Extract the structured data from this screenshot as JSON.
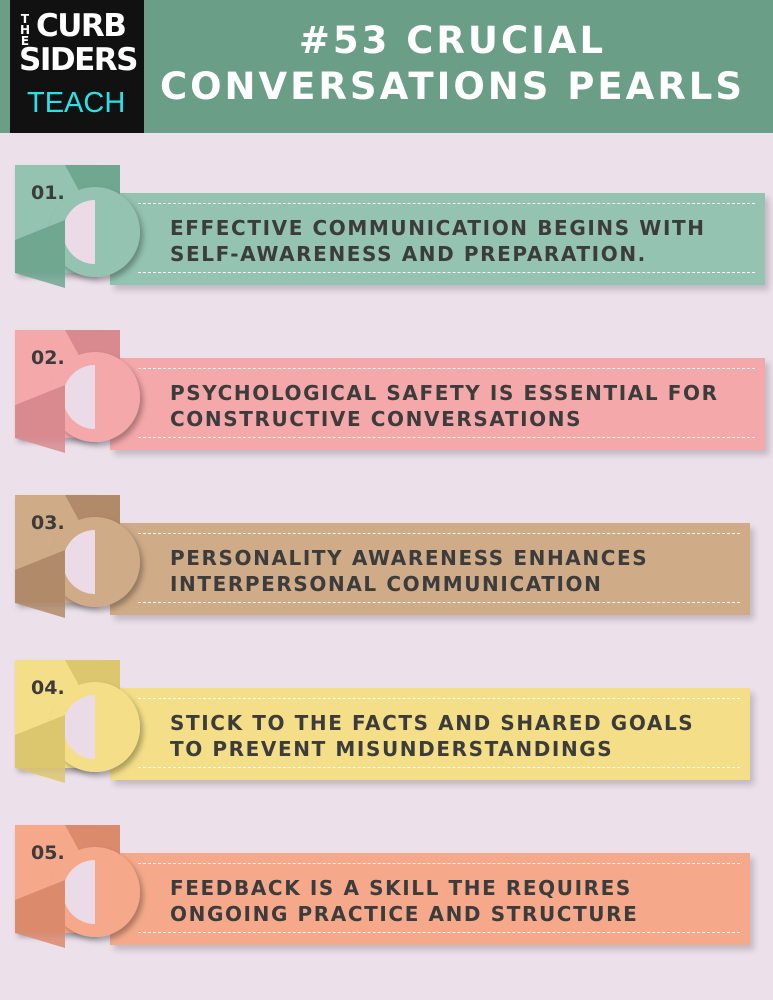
{
  "header": {
    "logo": {
      "the": "THE",
      "line1": "CURB",
      "line2": "SIDERS",
      "line3": "TEACH"
    },
    "title_line1": "#53 CRUCIAL",
    "title_line2": "CONVERSATIONS PEARLS"
  },
  "items": [
    {
      "number": "01.",
      "line1": "EFFECTIVE COMMUNICATION BEGINS WITH",
      "line2": "SELF-AWARENESS AND PREPARATION.",
      "color": "#94c3b1",
      "dark": "#6fa791"
    },
    {
      "number": "02.",
      "line1": "PSYCHOLOGICAL SAFETY IS ESSENTIAL FOR",
      "line2": "CONSTRUCTIVE CONVERSATIONS",
      "color": "#f5a8aa",
      "dark": "#d98a8e"
    },
    {
      "number": "03.",
      "line1": "PERSONALITY AWARENESS ENHANCES",
      "line2": "INTERPERSONAL COMMUNICATION",
      "color": "#cfab88",
      "dark": "#b18b69"
    },
    {
      "number": "04.",
      "line1": "STICK TO THE FACTS AND SHARED GOALS",
      "line2": "TO PREVENT MISUNDERSTANDINGS",
      "color": "#f4df88",
      "dark": "#dcc76e"
    },
    {
      "number": "05.",
      "line1": "FEEDBACK IS A SKILL THE REQUIRES",
      "line2": "ONGOING PRACTICE AND STRUCTURE",
      "color": "#f5a98a",
      "dark": "#dc8a6c"
    }
  ]
}
